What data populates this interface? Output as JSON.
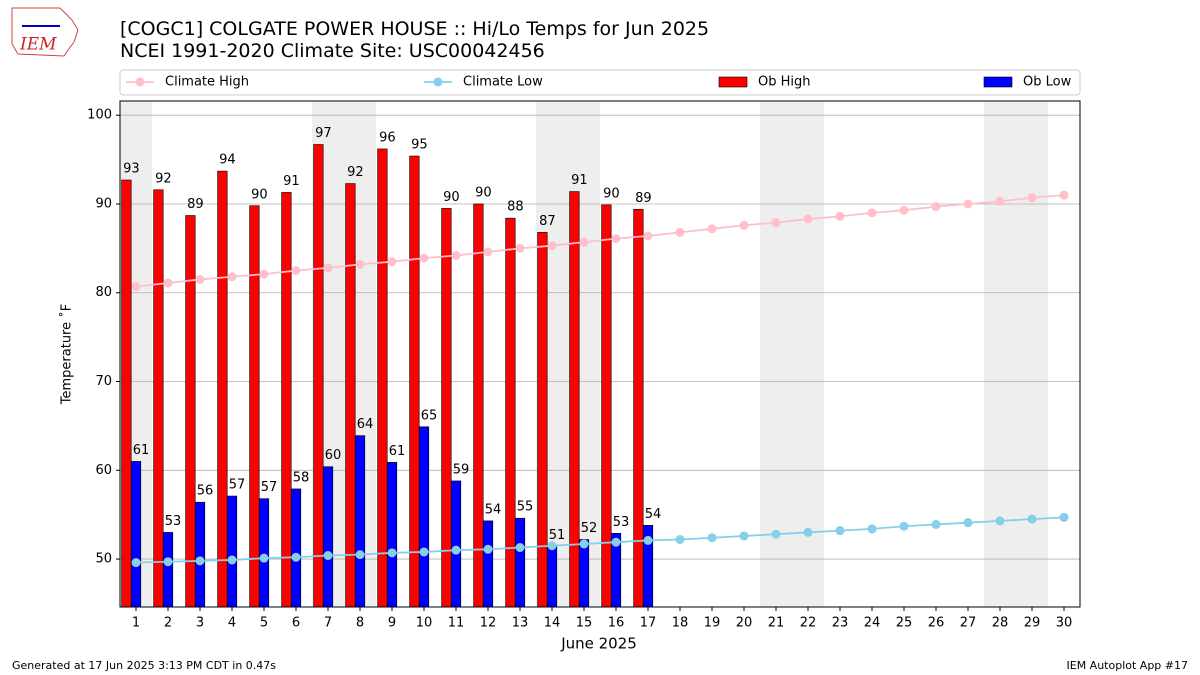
{
  "chart_data": {
    "type": "bar_line",
    "title": "[COGC1] COLGATE POWER HOUSE :: Hi/Lo Temps for Jun 2025",
    "subtitle": "NCEI 1991-2020 Climate Site: USC00042456",
    "xlabel": "June 2025",
    "ylabel": "Temperature ˚F",
    "footer_left": "Generated at 17 Jun 2025 3:13 PM CDT in 0.47s",
    "footer_right": "IEM Autoplot App #17",
    "logo": "IEM",
    "x": [
      1,
      2,
      3,
      4,
      5,
      6,
      7,
      8,
      9,
      10,
      11,
      12,
      13,
      14,
      15,
      16,
      17,
      18,
      19,
      20,
      21,
      22,
      23,
      24,
      25,
      26,
      27,
      28,
      29,
      30
    ],
    "xlim": [
      0.5,
      30.5
    ],
    "xticks": [
      1,
      2,
      3,
      4,
      5,
      6,
      7,
      8,
      9,
      10,
      11,
      12,
      13,
      14,
      15,
      16,
      17,
      18,
      19,
      20,
      21,
      22,
      23,
      24,
      25,
      26,
      27,
      28,
      29,
      30
    ],
    "ylim": [
      44.6,
      101.6
    ],
    "yticks": [
      50,
      60,
      70,
      80,
      90,
      100
    ],
    "grid": true,
    "weekend_shading": [
      1,
      7,
      8,
      14,
      15,
      21,
      22,
      28,
      29
    ],
    "series": [
      {
        "name": "Climate High",
        "kind": "line",
        "color": "#ffc0cb",
        "values": [
          80.7,
          81.1,
          81.5,
          81.8,
          82.1,
          82.5,
          82.8,
          83.2,
          83.5,
          83.9,
          84.2,
          84.6,
          85.0,
          85.3,
          85.7,
          86.1,
          86.4,
          86.8,
          87.2,
          87.6,
          87.9,
          88.3,
          88.6,
          89.0,
          89.3,
          89.7,
          90.0,
          90.3,
          90.7,
          91.0
        ]
      },
      {
        "name": "Climate Low",
        "kind": "line",
        "color": "#87ceeb",
        "values": [
          49.6,
          49.7,
          49.8,
          49.9,
          50.1,
          50.2,
          50.4,
          50.5,
          50.7,
          50.8,
          51.0,
          51.1,
          51.3,
          51.5,
          51.7,
          51.9,
          52.1,
          52.2,
          52.4,
          52.6,
          52.8,
          53.0,
          53.2,
          53.4,
          53.7,
          53.9,
          54.1,
          54.3,
          54.5,
          54.7
        ]
      },
      {
        "name": "Ob High",
        "kind": "bar",
        "color": "#ff0000",
        "offset": -0.3,
        "values": [
          92.7,
          91.6,
          88.7,
          93.7,
          89.8,
          91.3,
          96.7,
          92.3,
          96.2,
          95.4,
          89.5,
          90.0,
          88.4,
          86.8,
          91.4,
          89.9,
          89.4,
          null,
          null,
          null,
          null,
          null,
          null,
          null,
          null,
          null,
          null,
          null,
          null,
          null
        ],
        "value_labels": [
          "93",
          "92",
          "89",
          "94",
          "90",
          "91",
          "97",
          "92",
          "96",
          "95",
          "90",
          "90",
          "88",
          "87",
          "91",
          "90",
          "89",
          null,
          null,
          null,
          null,
          null,
          null,
          null,
          null,
          null,
          null,
          null,
          null,
          null
        ]
      },
      {
        "name": "Ob Low",
        "kind": "bar",
        "color": "#0000ff",
        "offset": 0,
        "values": [
          61.0,
          53.0,
          56.4,
          57.1,
          56.8,
          57.9,
          60.4,
          63.9,
          60.9,
          64.9,
          58.8,
          54.3,
          54.6,
          51.4,
          52.2,
          52.9,
          53.8,
          null,
          null,
          null,
          null,
          null,
          null,
          null,
          null,
          null,
          null,
          null,
          null,
          null
        ],
        "value_labels": [
          "61",
          "53",
          "56",
          "57",
          "57",
          "58",
          "60",
          "64",
          "61",
          "65",
          "59",
          "54",
          "55",
          "51",
          "52",
          "53",
          "54",
          null,
          null,
          null,
          null,
          null,
          null,
          null,
          null,
          null,
          null,
          null,
          null,
          null
        ]
      }
    ]
  }
}
